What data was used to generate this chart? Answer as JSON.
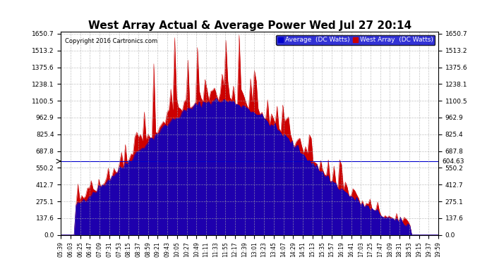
{
  "title": "West Array Actual & Average Power Wed Jul 27 20:14",
  "copyright": "Copyright 2016 Cartronics.com",
  "ylabel_left": "",
  "ylabel_right": "",
  "ymax": 1650.7,
  "ymin": 0.0,
  "yticks": [
    0.0,
    137.6,
    275.1,
    412.7,
    550.2,
    687.8,
    825.4,
    962.9,
    1100.5,
    1238.1,
    1375.6,
    1513.2,
    1650.7
  ],
  "hline_value": 604.63,
  "hline_label": "604.63",
  "avg_color": "#0000cc",
  "west_color": "#cc0000",
  "bg_color": "#ffffff",
  "grid_color": "#aaaaaa",
  "legend_avg_label": "Average  (DC Watts)",
  "legend_west_label": "West Array  (DC Watts)",
  "xtick_labels": [
    "05:39",
    "06:03",
    "06:25",
    "06:47",
    "07:09",
    "07:31",
    "07:53",
    "08:15",
    "08:37",
    "08:59",
    "09:21",
    "09:43",
    "10:05",
    "10:27",
    "10:49",
    "11:11",
    "11:33",
    "11:55",
    "12:17",
    "12:39",
    "13:01",
    "13:23",
    "13:45",
    "14:07",
    "14:29",
    "14:51",
    "15:13",
    "15:35",
    "15:57",
    "16:19",
    "16:41",
    "17:03",
    "17:25",
    "17:47",
    "18:09",
    "18:31",
    "18:53",
    "19:15",
    "19:37",
    "19:59"
  ],
  "n_points": 200
}
